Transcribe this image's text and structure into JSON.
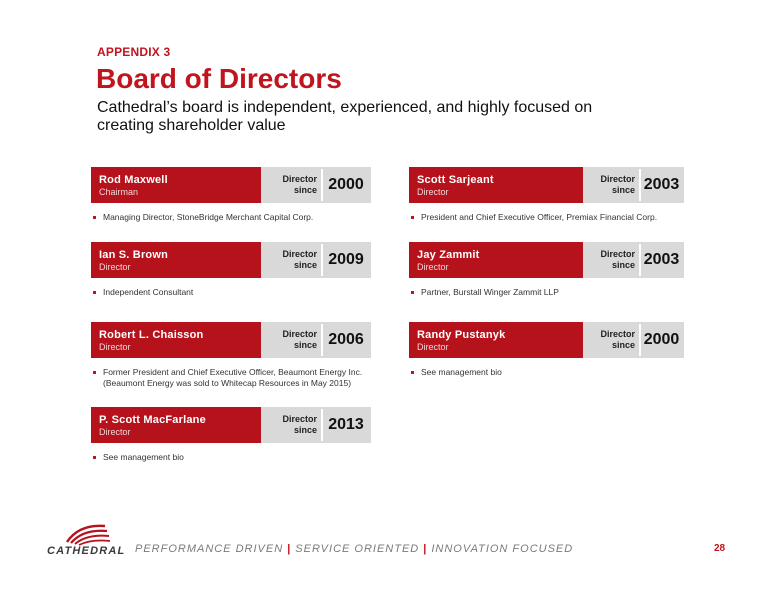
{
  "header": {
    "appendix": "APPENDIX 3",
    "title": "Board of Directors",
    "subtitle": "Cathedral’s board is independent, experienced, and highly focused on creating shareholder value"
  },
  "director_since_label_1": "Director",
  "director_since_label_2": "since",
  "directors": [
    {
      "name": "Rod Maxwell",
      "role": "Chairman",
      "year": "2000",
      "bullets": [
        "Managing Director, StoneBridge Merchant Capital Corp."
      ]
    },
    {
      "name": "Scott Sarjeant",
      "role": "Director",
      "year": "2003",
      "bullets": [
        "President and Chief Executive Officer, Premiax Financial Corp."
      ]
    },
    {
      "name": "Ian S. Brown",
      "role": "Director",
      "year": "2009",
      "bullets": [
        "Independent Consultant"
      ]
    },
    {
      "name": "Jay Zammit",
      "role": "Director",
      "year": "2003",
      "bullets": [
        "Partner, Burstall Winger Zammit LLP"
      ]
    },
    {
      "name": "Robert L. Chaisson",
      "role": "Director",
      "year": "2006",
      "bullets": [
        "Former President and Chief Executive Officer, Beaumont Energy Inc. (Beaumont Energy was sold to Whitecap Resources in May 2015)"
      ]
    },
    {
      "name": "Randy Pustanyk",
      "role": "Director",
      "year": "2000",
      "bullets": [
        "See management bio"
      ]
    },
    {
      "name": "P. Scott MacFarlane",
      "role": "Director",
      "year": "2013",
      "bullets": [
        "See management bio"
      ]
    }
  ],
  "footer": {
    "logo_text": "CATHEDRAL",
    "tagline_1": "PERFORMANCE DRIVEN",
    "tagline_2": "SERVICE ORIENTED",
    "tagline_3": "INNOVATION FOCUSED",
    "separator": "|",
    "page_number": "28"
  },
  "colors": {
    "brand_red": "#b5121b",
    "grey_block": "#d9d9d9"
  }
}
